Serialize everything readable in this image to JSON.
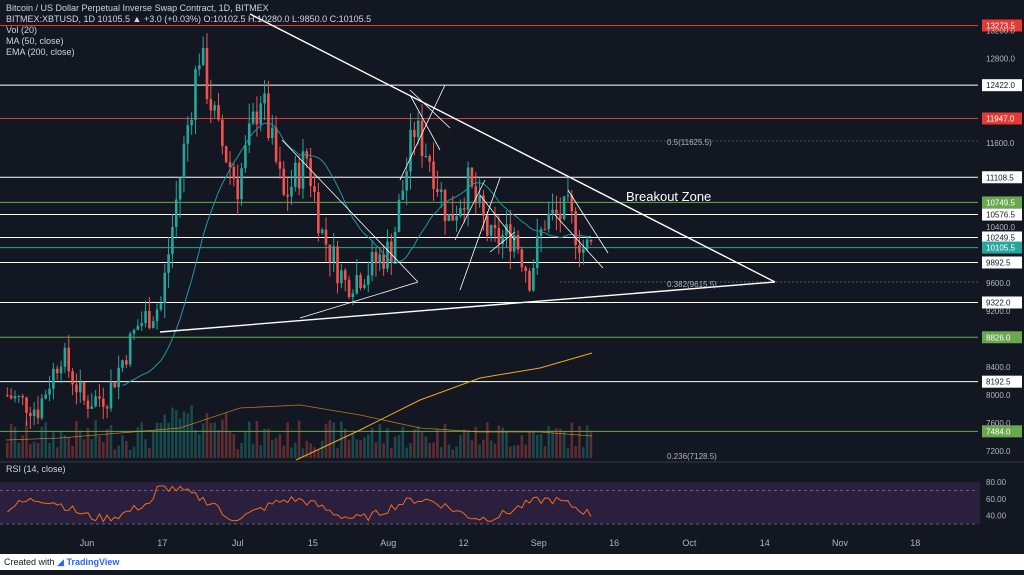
{
  "header": {
    "title": "Bitcoin / US Dollar Perpetual Inverse Swap Contract, 1D, BITMEX",
    "ohlc": "BITMEX:XBTUSD, 1D  10105.5  ▲  +3.0 (+0.03%)  O:10102.5  H:10280.0  L:9850.0  C:10105.5",
    "indicators": [
      "Vol (20)",
      "MA (50, close)",
      "EMA (200, close)"
    ]
  },
  "rsi_label": "RSI (14, close)",
  "annotations": {
    "breakout": "Breakout Zone",
    "fib_05": "0.5(11625.5)",
    "fib_0382": "0.382(9615.5)",
    "fib_0236": "0.236(7128.5)"
  },
  "footer": {
    "prefix": "Created with",
    "brand": "TradingView"
  },
  "chart_data": {
    "type": "candlestick",
    "symbol": "BITMEX:XBTUSD",
    "interval": "1D",
    "x_labels": [
      "Jun",
      "17",
      "Jul",
      "15",
      "Aug",
      "12",
      "Sep",
      "16",
      "Oct",
      "14",
      "Nov",
      "18"
    ],
    "price_ticks": [
      7200,
      7600,
      8000,
      8400,
      9200,
      9600,
      10400,
      11600,
      12800,
      13200
    ],
    "levels": [
      {
        "value": 13273.5,
        "color": "#e53935",
        "style": "red"
      },
      {
        "value": 12422.0,
        "color": "#ffffff",
        "style": "white"
      },
      {
        "value": 11947.0,
        "color": "#e53935",
        "style": "red"
      },
      {
        "value": 11108.5,
        "color": "#ffffff",
        "style": "white"
      },
      {
        "value": 10749.5,
        "color": "#6aa84f",
        "style": "green"
      },
      {
        "value": 10576.5,
        "color": "#ffffff",
        "style": "white"
      },
      {
        "value": 10249.5,
        "color": "#ffffff",
        "style": "white"
      },
      {
        "value": 10105.5,
        "color": "#26a69a",
        "style": "teal"
      },
      {
        "value": 9892.5,
        "color": "#ffffff",
        "style": "white"
      },
      {
        "value": 9322.0,
        "color": "#ffffff",
        "style": "white"
      },
      {
        "value": 8826.0,
        "color": "#6aa84f",
        "style": "green"
      },
      {
        "value": 8192.5,
        "color": "#ffffff",
        "style": "white"
      },
      {
        "value": 7484.0,
        "color": "#6aa84f",
        "style": "green"
      }
    ],
    "rsi_ticks": [
      80.0,
      60.0,
      40.0
    ],
    "colors": {
      "up": "#26a69a",
      "down": "#ef5350",
      "ma50": "#2196a3",
      "ema200": "#f5a623",
      "rsi": "#f26b21"
    }
  }
}
